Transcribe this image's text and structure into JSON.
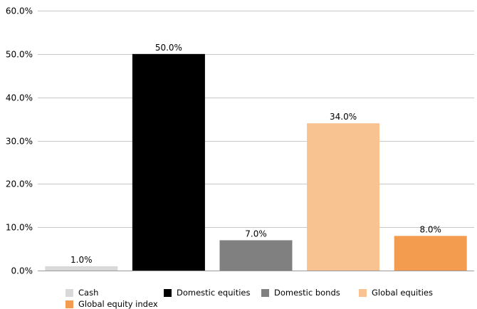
{
  "chart_data": {
    "type": "bar",
    "categories": [
      "Cash",
      "Domestic equities",
      "Domestic bonds",
      "Global equities",
      "Global equity index"
    ],
    "values": [
      1.0,
      50.0,
      7.0,
      34.0,
      8.0
    ],
    "data_labels": [
      "1.0%",
      "50.0%",
      "7.0%",
      "34.0%",
      "8.0%"
    ],
    "colors": [
      "#d9d9d9",
      "#000000",
      "#808080",
      "#f8c291",
      "#f39c4f"
    ],
    "title": "",
    "xlabel": "",
    "ylabel": "",
    "ylim": [
      0,
      60
    ],
    "yticks": [
      0,
      10,
      20,
      30,
      40,
      50,
      60
    ],
    "ytick_labels": [
      "0.0%",
      "10.0%",
      "20.0%",
      "30.0%",
      "40.0%",
      "50.0%",
      "60.0%"
    ],
    "grid": true,
    "legend_position": "bottom"
  },
  "legend": [
    {
      "label": "Cash",
      "color": "#d9d9d9"
    },
    {
      "label": "Domestic equities",
      "color": "#000000"
    },
    {
      "label": "Domestic bonds",
      "color": "#808080"
    },
    {
      "label": "Global equities",
      "color": "#f8c291"
    },
    {
      "label": "Global equity index",
      "color": "#f39c4f"
    }
  ]
}
